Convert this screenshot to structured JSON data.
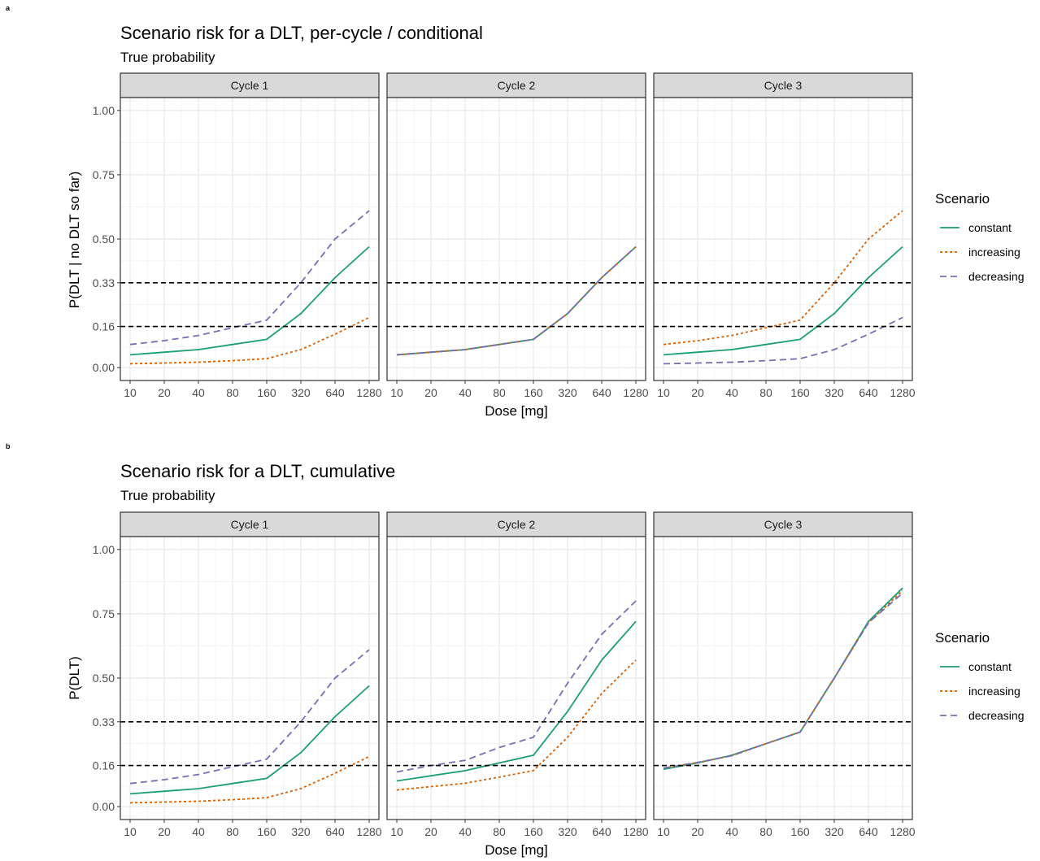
{
  "figure": {
    "tags": [
      "a",
      "b"
    ],
    "colors": {
      "constant": "#1b9e77",
      "increasing": "#d95f02",
      "decreasing": "#7570b3",
      "reference": "#000000"
    }
  },
  "legend": {
    "title": "Scenario",
    "entries": [
      {
        "label": "constant",
        "color": "#1b9e77",
        "dash": "solid"
      },
      {
        "label": "increasing",
        "color": "#d95f02",
        "dash": "dotted"
      },
      {
        "label": "decreasing",
        "color": "#7570b3",
        "dash": "dashed"
      }
    ]
  },
  "chart_data": [
    {
      "type": "line",
      "title": "Scenario risk for a DLT, per-cycle / conditional",
      "subtitle": "True probability",
      "xlabel": "Dose [mg]",
      "ylabel": "P(DLT | no DLT so far)",
      "x": [
        10,
        20,
        40,
        80,
        160,
        320,
        640,
        1280
      ],
      "x_scale": "log2",
      "y_ticks": [
        0.0,
        0.16,
        0.33,
        0.5,
        0.75,
        1.0
      ],
      "y_tick_labels": [
        "0.00",
        "0.16",
        "0.33",
        "0.50",
        "0.75",
        "1.00"
      ],
      "ylim": [
        0,
        1
      ],
      "reference_lines": [
        0.16,
        0.33
      ],
      "grid": true,
      "legend_position": "right",
      "panels": [
        {
          "label": "Cycle 1",
          "series": [
            {
              "name": "constant",
              "values": [
                0.05,
                0.06,
                0.07,
                0.09,
                0.11,
                0.21,
                0.35,
                0.47
              ]
            },
            {
              "name": "increasing",
              "values": [
                0.015,
                0.018,
                0.021,
                0.027,
                0.035,
                0.07,
                0.13,
                0.195
              ]
            },
            {
              "name": "decreasing",
              "values": [
                0.09,
                0.105,
                0.125,
                0.155,
                0.185,
                0.33,
                0.5,
                0.61
              ]
            }
          ]
        },
        {
          "label": "Cycle 2",
          "series": [
            {
              "name": "constant",
              "values": [
                0.05,
                0.06,
                0.07,
                0.09,
                0.11,
                0.21,
                0.35,
                0.47
              ]
            },
            {
              "name": "increasing",
              "values": [
                0.05,
                0.06,
                0.07,
                0.09,
                0.11,
                0.21,
                0.35,
                0.47
              ]
            },
            {
              "name": "decreasing",
              "values": [
                0.05,
                0.06,
                0.07,
                0.09,
                0.11,
                0.21,
                0.35,
                0.47
              ]
            }
          ]
        },
        {
          "label": "Cycle 3",
          "series": [
            {
              "name": "constant",
              "values": [
                0.05,
                0.06,
                0.07,
                0.09,
                0.11,
                0.21,
                0.35,
                0.47
              ]
            },
            {
              "name": "increasing",
              "values": [
                0.09,
                0.105,
                0.125,
                0.155,
                0.185,
                0.33,
                0.5,
                0.61
              ]
            },
            {
              "name": "decreasing",
              "values": [
                0.015,
                0.018,
                0.021,
                0.027,
                0.035,
                0.07,
                0.13,
                0.195
              ]
            }
          ]
        }
      ]
    },
    {
      "type": "line",
      "title": "Scenario risk for a DLT, cumulative",
      "subtitle": "True probability",
      "xlabel": "Dose [mg]",
      "ylabel": "P(DLT)",
      "x": [
        10,
        20,
        40,
        80,
        160,
        320,
        640,
        1280
      ],
      "x_scale": "log2",
      "y_ticks": [
        0.0,
        0.16,
        0.33,
        0.5,
        0.75,
        1.0
      ],
      "y_tick_labels": [
        "0.00",
        "0.16",
        "0.33",
        "0.50",
        "0.75",
        "1.00"
      ],
      "ylim": [
        0,
        1
      ],
      "reference_lines": [
        0.16,
        0.33
      ],
      "grid": true,
      "legend_position": "right",
      "panels": [
        {
          "label": "Cycle 1",
          "series": [
            {
              "name": "constant",
              "values": [
                0.05,
                0.06,
                0.07,
                0.09,
                0.11,
                0.21,
                0.35,
                0.47
              ]
            },
            {
              "name": "increasing",
              "values": [
                0.015,
                0.018,
                0.021,
                0.027,
                0.035,
                0.07,
                0.13,
                0.195
              ]
            },
            {
              "name": "decreasing",
              "values": [
                0.09,
                0.105,
                0.125,
                0.155,
                0.185,
                0.33,
                0.5,
                0.61
              ]
            }
          ]
        },
        {
          "label": "Cycle 2",
          "series": [
            {
              "name": "constant",
              "values": [
                0.1,
                0.12,
                0.14,
                0.17,
                0.2,
                0.37,
                0.57,
                0.72
              ]
            },
            {
              "name": "increasing",
              "values": [
                0.065,
                0.078,
                0.091,
                0.115,
                0.14,
                0.27,
                0.44,
                0.57
              ]
            },
            {
              "name": "decreasing",
              "values": [
                0.135,
                0.16,
                0.18,
                0.23,
                0.27,
                0.48,
                0.67,
                0.8
              ]
            }
          ]
        },
        {
          "label": "Cycle 3",
          "series": [
            {
              "name": "constant",
              "values": [
                0.145,
                0.17,
                0.2,
                0.245,
                0.29,
                0.5,
                0.72,
                0.85
              ]
            },
            {
              "name": "increasing",
              "values": [
                0.15,
                0.172,
                0.198,
                0.245,
                0.29,
                0.5,
                0.715,
                0.84
              ]
            },
            {
              "name": "decreasing",
              "values": [
                0.15,
                0.172,
                0.198,
                0.245,
                0.29,
                0.5,
                0.715,
                0.83
              ]
            }
          ]
        }
      ]
    }
  ]
}
